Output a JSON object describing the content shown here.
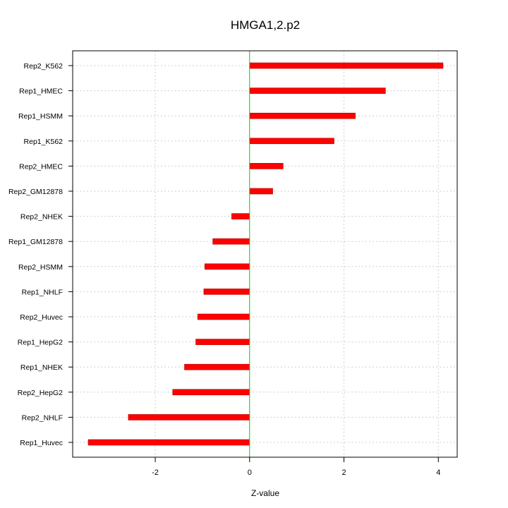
{
  "chart_data": {
    "type": "bar",
    "orientation": "horizontal",
    "title": "HMGA1,2.p2",
    "xlabel": "Z-value",
    "ylabel": "",
    "xlim": [
      -3.75,
      4.4
    ],
    "xticks": [
      -2,
      0,
      2,
      4
    ],
    "grid": true,
    "zero_line_color": "#00cc00",
    "bar_color": "#ff0000",
    "categories": [
      "Rep2_K562",
      "Rep1_HMEC",
      "Rep1_HSMM",
      "Rep1_K562",
      "Rep2_HMEC",
      "Rep2_GM12878",
      "Rep2_NHEK",
      "Rep1_GM12878",
      "Rep2_HSMM",
      "Rep1_NHLF",
      "Rep2_Huvec",
      "Rep1_HepG2",
      "Rep1_NHEK",
      "Rep2_HepG2",
      "Rep2_NHLF",
      "Rep1_Huvec"
    ],
    "values": [
      4.1,
      2.88,
      2.24,
      1.79,
      0.71,
      0.49,
      -0.38,
      -0.78,
      -0.95,
      -0.97,
      -1.1,
      -1.14,
      -1.38,
      -1.63,
      -2.57,
      -3.42
    ]
  }
}
